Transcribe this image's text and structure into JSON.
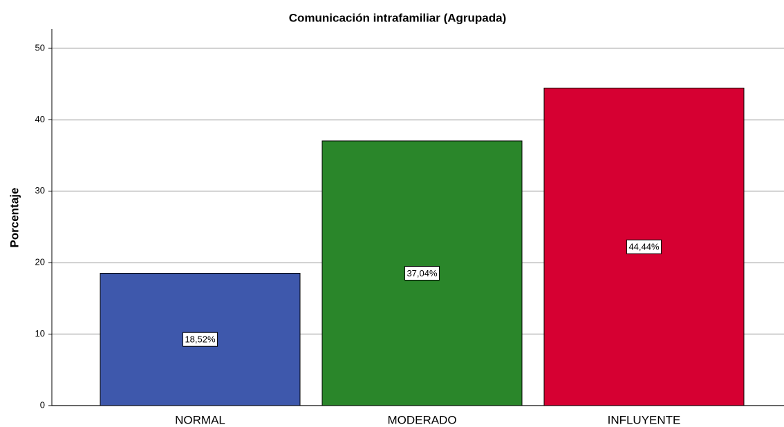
{
  "chart_data": {
    "type": "bar",
    "title": "Comunicación intrafamiliar (Agrupada)",
    "y_label": "Porcentaje",
    "categories": [
      "NORMAL",
      "MODERADO",
      "INFLUYENTE"
    ],
    "values": [
      18.52,
      37.04,
      44.44
    ],
    "value_labels": [
      "18,52%",
      "37,04%",
      "44,44%"
    ],
    "colors": [
      "#3e58ac",
      "#2a862a",
      "#d60032"
    ],
    "ylim": [
      0,
      52.7
    ],
    "yticks": [
      0,
      10,
      20,
      30,
      40,
      50
    ],
    "grid": true
  }
}
